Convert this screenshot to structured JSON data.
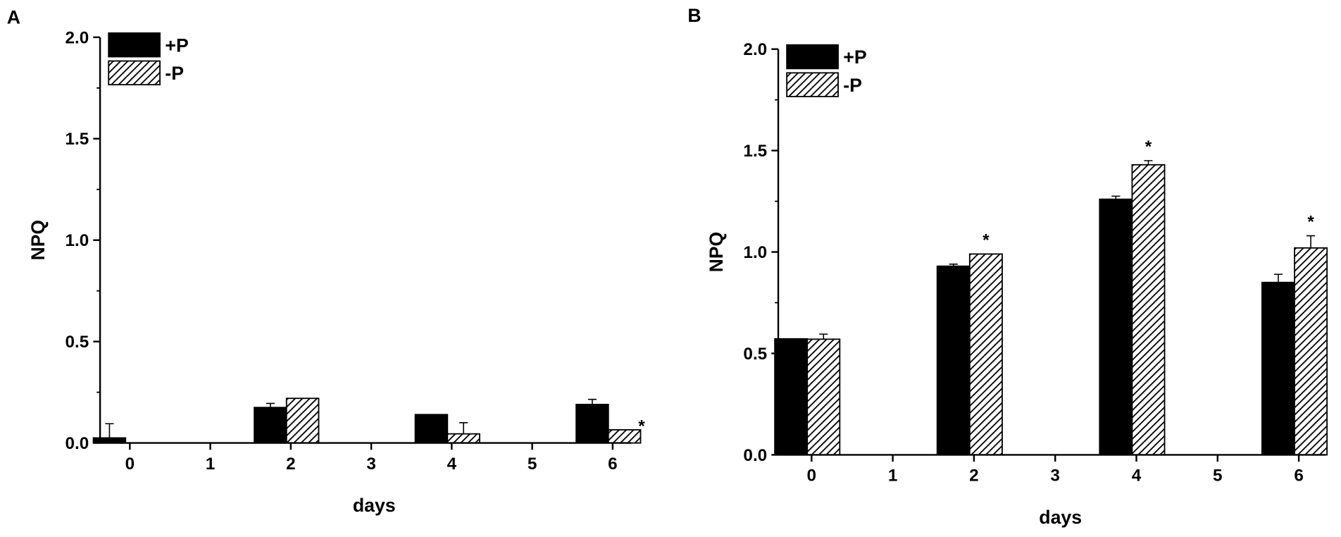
{
  "chart_data": [
    {
      "type": "bar",
      "label": "A",
      "xlabel": "days",
      "ylabel": "NPQ",
      "x": [
        0,
        1,
        2,
        3,
        4,
        5,
        6
      ],
      "xlim": [
        -0.37,
        6.23
      ],
      "xticks": [
        0,
        1,
        2,
        3,
        4,
        5,
        6
      ],
      "ylim": [
        0,
        2.0
      ],
      "yticks": [
        {
          "value": 0,
          "label": "0.0"
        },
        {
          "value": 0.5,
          "label": "0.5"
        },
        {
          "value": 1.0,
          "label": "1.0"
        },
        {
          "value": 1.5,
          "label": "1.5"
        },
        {
          "value": 2.0,
          "label": "2.0"
        }
      ],
      "legend": "upper left",
      "series": [
        {
          "name": "+P",
          "color": "#000000",
          "pattern": "solid",
          "values": [
            0.025,
            null,
            0.175,
            null,
            0.14,
            null,
            0.19
          ],
          "errors": [
            0.07,
            null,
            0.02,
            null,
            0,
            null,
            0.025
          ]
        },
        {
          "name": "-P",
          "color": "#000000",
          "pattern": "hatch",
          "values": [
            0,
            null,
            0.22,
            null,
            0.045,
            null,
            0.065
          ],
          "errors": [
            0,
            null,
            0,
            null,
            0.055,
            null,
            0
          ]
        }
      ],
      "annotations": [
        {
          "text": "*",
          "x": 6
        }
      ]
    },
    {
      "type": "bar",
      "label": "B",
      "xlabel": "days",
      "ylabel": "NPQ",
      "x": [
        0,
        1,
        2,
        3,
        4,
        5,
        6
      ],
      "xlim": [
        -0.41,
        6.33
      ],
      "xticks": [
        0,
        1,
        2,
        3,
        4,
        5,
        6
      ],
      "ylim": [
        0,
        2.0
      ],
      "yticks": [
        {
          "value": 0,
          "label": "0.0"
        },
        {
          "value": 0.5,
          "label": "0.5"
        },
        {
          "value": 1.0,
          "label": "1.0"
        },
        {
          "value": 1.5,
          "label": "1.5"
        },
        {
          "value": 2.0,
          "label": "2.0"
        }
      ],
      "legend": "upper left",
      "series": [
        {
          "name": "+P",
          "color": "#000000",
          "pattern": "solid",
          "values": [
            0.572,
            null,
            0.93,
            null,
            1.26,
            null,
            0.85
          ],
          "errors": [
            0,
            null,
            0.01,
            null,
            0.015,
            null,
            0.04
          ]
        },
        {
          "name": "-P",
          "color": "#000000",
          "pattern": "hatch",
          "values": [
            0.57,
            null,
            0.99,
            null,
            1.43,
            null,
            1.02
          ],
          "errors": [
            0.025,
            null,
            0,
            null,
            0.02,
            null,
            0.06
          ]
        }
      ],
      "annotations": [
        {
          "text": "*",
          "x": 2
        },
        {
          "text": "*",
          "x": 4
        },
        {
          "text": "*",
          "x": 6
        }
      ]
    }
  ]
}
